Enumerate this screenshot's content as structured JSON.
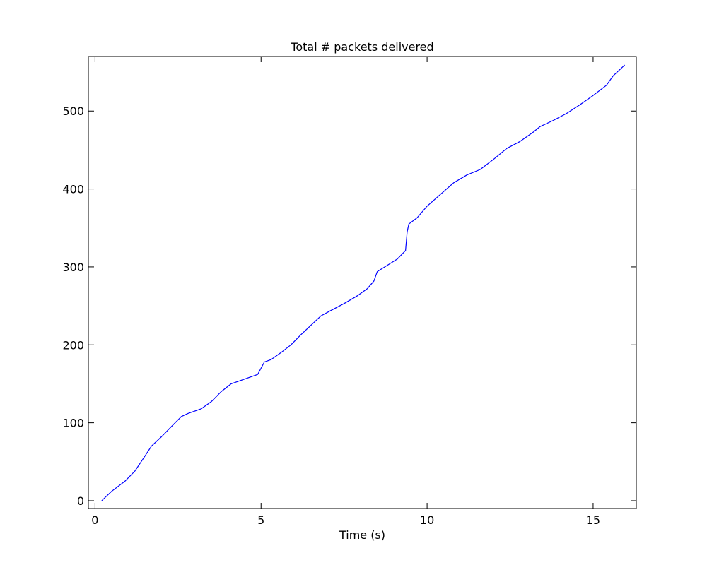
{
  "chart_data": {
    "type": "line",
    "title": "Total # packets delivered",
    "xlabel": "Time (s)",
    "ylabel": "",
    "xlim": [
      -0.2,
      16.3
    ],
    "ylim": [
      -10,
      570
    ],
    "xticks": [
      0,
      5,
      10,
      15
    ],
    "xtick_labels": [
      "0",
      "5",
      "10",
      "15"
    ],
    "yticks": [
      0,
      100,
      200,
      300,
      400,
      500
    ],
    "ytick_labels": [
      "0",
      "100",
      "200",
      "300",
      "400",
      "500"
    ],
    "grid": false,
    "legend": "none",
    "colors": {
      "line": "#0000ff",
      "axes": "#000000",
      "background": "#ffffff"
    },
    "series": [
      {
        "x": [
          0.2,
          0.5,
          0.9,
          1.2,
          1.5,
          1.7,
          2.0,
          2.3,
          2.6,
          2.8,
          3.2,
          3.5,
          3.8,
          4.1,
          4.5,
          4.9,
          5.0,
          5.1,
          5.3,
          5.6,
          5.9,
          6.2,
          6.5,
          6.8,
          7.1,
          7.5,
          7.9,
          8.2,
          8.4,
          8.5,
          8.8,
          9.1,
          9.35,
          9.4,
          9.45,
          9.7,
          10.0,
          10.4,
          10.8,
          11.2,
          11.6,
          12.0,
          12.4,
          12.8,
          13.2,
          13.4,
          13.8,
          14.2,
          14.6,
          15.0,
          15.4,
          15.6,
          15.95
        ],
        "y": [
          0,
          12,
          25,
          38,
          57,
          70,
          82,
          95,
          108,
          112,
          118,
          127,
          140,
          150,
          156,
          162,
          170,
          178,
          181,
          190,
          200,
          213,
          225,
          237,
          244,
          253,
          263,
          272,
          282,
          294,
          302,
          310,
          321,
          345,
          355,
          363,
          378,
          393,
          408,
          418,
          425,
          438,
          452,
          461,
          473,
          480,
          488,
          497,
          508,
          520,
          533,
          545,
          559
        ]
      }
    ]
  }
}
